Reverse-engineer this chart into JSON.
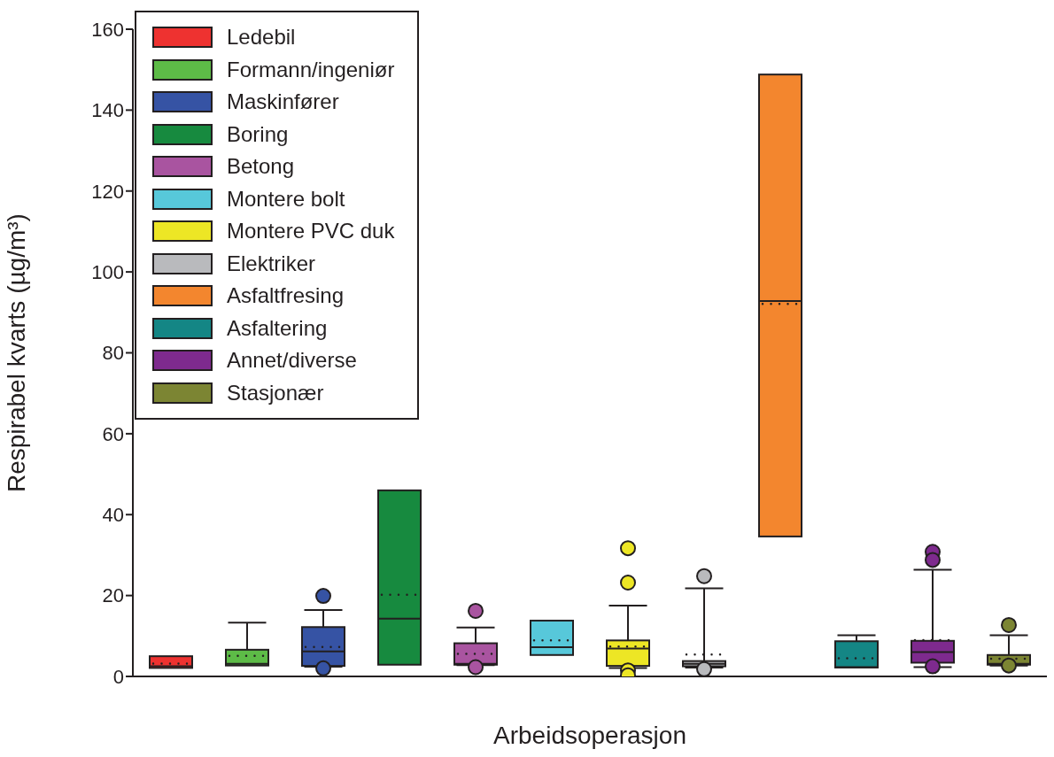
{
  "chart_data": {
    "type": "box",
    "xlabel": "Arbeidsoperasjon",
    "ylabel": "Respirabel kvarts (µg/m³)",
    "categories": [
      null,
      null,
      null,
      null,
      null,
      null,
      null,
      null,
      null,
      null,
      null,
      null
    ],
    "ylim": [
      0,
      160
    ],
    "yticks": [
      0,
      20,
      40,
      60,
      80,
      100,
      120,
      140,
      160
    ],
    "grid": false,
    "legend": "top left",
    "series": [
      {
        "name": "Ledebil",
        "color": "#ee3230",
        "boxes": [
          {
            "low": 2.1,
            "q1": 2.1,
            "median": 2.5,
            "q3": 5.0,
            "high": 5.0,
            "mean": 3.2
          },
          null,
          null,
          null,
          null,
          null,
          null,
          null,
          null,
          null,
          null,
          null
        ]
      },
      {
        "name": "Formann/ingeniør",
        "color": "#5dbb47",
        "boxes": [
          null,
          {
            "low": 2.7,
            "q1": 2.7,
            "median": 3.1,
            "q3": 6.6,
            "high": 13.3,
            "mean": 5.1
          },
          null,
          null,
          null,
          null,
          null,
          null,
          null,
          null,
          null,
          null
        ]
      },
      {
        "name": "Maskinfører",
        "color": "#3653a4",
        "boxes": [
          null,
          null,
          {
            "low": 2.4,
            "q1": 2.6,
            "median": 6.2,
            "q3": 12.2,
            "high": 16.4,
            "mean": 7.3,
            "outliers": [
              19.9,
              2.0
            ]
          },
          null,
          null,
          null,
          null,
          null,
          null,
          null,
          null,
          null
        ]
      },
      {
        "name": "Boring",
        "color": "#178a3f",
        "boxes": [
          null,
          null,
          null,
          {
            "low": 2.9,
            "q1": 2.9,
            "median": 14.3,
            "q3": 46.0,
            "high": 46.0,
            "mean": 20.2
          },
          null,
          null,
          null,
          null,
          null,
          null,
          null,
          null
        ]
      },
      {
        "name": "Betong",
        "color": "#a954a0",
        "boxes": [
          null,
          null,
          null,
          null,
          {
            "low": 2.8,
            "q1": 2.9,
            "median": 3.1,
            "q3": 8.2,
            "high": 12.1,
            "mean": 5.6,
            "outliers": [
              16.2,
              2.3
            ]
          },
          null,
          null,
          null,
          null,
          null,
          null,
          null
        ]
      },
      {
        "name": "Montere bolt",
        "color": "#57c8da",
        "boxes": [
          null,
          null,
          null,
          null,
          null,
          {
            "low": 5.3,
            "q1": 5.3,
            "median": 7.2,
            "q3": 13.8,
            "high": 13.8,
            "mean": 8.9
          },
          null,
          null,
          null,
          null,
          null,
          null
        ]
      },
      {
        "name": "Montere PVC duk",
        "color": "#ede625",
        "boxes": [
          null,
          null,
          null,
          null,
          null,
          null,
          {
            "low": 2.1,
            "q1": 2.6,
            "median": 6.9,
            "q3": 8.9,
            "high": 17.5,
            "mean": 7.4,
            "outliers": [
              31.7,
              23.2,
              1.5,
              0.3
            ]
          },
          null,
          null,
          null,
          null,
          null
        ]
      },
      {
        "name": "Elektriker",
        "color": "#b9babd",
        "boxes": [
          null,
          null,
          null,
          null,
          null,
          null,
          null,
          {
            "low": 2.2,
            "q1": 2.5,
            "median": 3.1,
            "q3": 3.8,
            "high": 21.8,
            "mean": 5.4,
            "outliers": [
              24.8,
              1.8
            ]
          },
          null,
          null,
          null,
          null
        ]
      },
      {
        "name": "Asfaltfresing",
        "color": "#f3862e",
        "boxes": [
          null,
          null,
          null,
          null,
          null,
          null,
          null,
          null,
          {
            "low": 34.6,
            "q1": 34.6,
            "median": 92.8,
            "q3": 148.8,
            "high": 148.8,
            "mean": 92.1
          },
          null,
          null,
          null
        ]
      },
      {
        "name": "Asfaltering",
        "color": "#148685",
        "boxes": [
          null,
          null,
          null,
          null,
          null,
          null,
          null,
          null,
          null,
          {
            "low": 2.2,
            "q1": 2.2,
            "median": 2.3,
            "q3": 8.7,
            "high": 10.2,
            "mean": 4.5
          },
          null,
          null
        ]
      },
      {
        "name": "Annet/diverse",
        "color": "#7e2a8e",
        "boxes": [
          null,
          null,
          null,
          null,
          null,
          null,
          null,
          null,
          null,
          null,
          {
            "low": 2.3,
            "q1": 3.4,
            "median": 6.0,
            "q3": 8.8,
            "high": 26.4,
            "mean": 9.0,
            "outliers": [
              30.8,
              28.8,
              2.5
            ]
          },
          null
        ]
      },
      {
        "name": "Stasjonær",
        "color": "#7c8533",
        "boxes": [
          null,
          null,
          null,
          null,
          null,
          null,
          null,
          null,
          null,
          null,
          null,
          {
            "low": 2.7,
            "q1": 2.9,
            "median": 3.1,
            "q3": 5.3,
            "high": 10.2,
            "mean": 4.4,
            "outliers": [
              12.7,
              2.7
            ]
          }
        ]
      }
    ]
  }
}
